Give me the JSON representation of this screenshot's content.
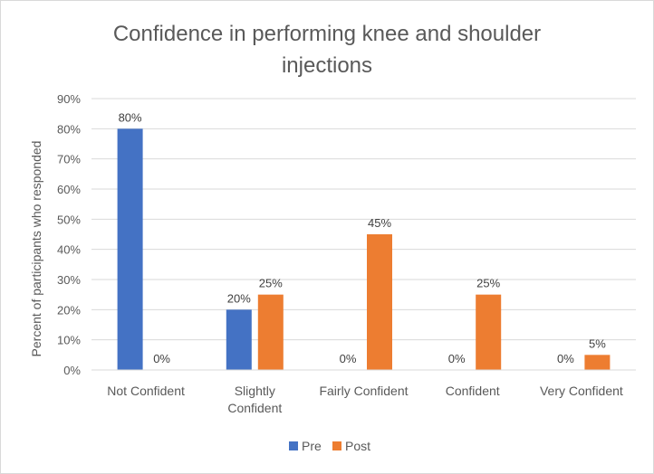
{
  "chart_data": {
    "type": "bar",
    "title_lines": [
      "Confidence in performing knee and shoulder",
      "injections"
    ],
    "xlabel": "",
    "ylabel": "Percent of participants who responded",
    "categories": [
      [
        "Not Confident"
      ],
      [
        "Slightly",
        "Confident"
      ],
      [
        "Fairly Confident"
      ],
      [
        "Confident"
      ],
      [
        "Very Confident"
      ]
    ],
    "series": [
      {
        "name": "Pre",
        "color": "#4472c4",
        "values": [
          80,
          20,
          0,
          0,
          0
        ],
        "labels": [
          "80%",
          "20%",
          "0%",
          "0%",
          "0%"
        ]
      },
      {
        "name": "Post",
        "color": "#ed7d31",
        "values": [
          0,
          25,
          45,
          25,
          5
        ],
        "labels": [
          "0%",
          "25%",
          "45%",
          "25%",
          "5%"
        ]
      }
    ],
    "ylim": [
      0,
      90
    ],
    "yticks": [
      0,
      10,
      20,
      30,
      40,
      50,
      60,
      70,
      80,
      90
    ],
    "ytick_labels": [
      "0%",
      "10%",
      "20%",
      "30%",
      "40%",
      "50%",
      "60%",
      "70%",
      "80%",
      "90%"
    ],
    "grid": true,
    "legend_position": "bottom"
  }
}
